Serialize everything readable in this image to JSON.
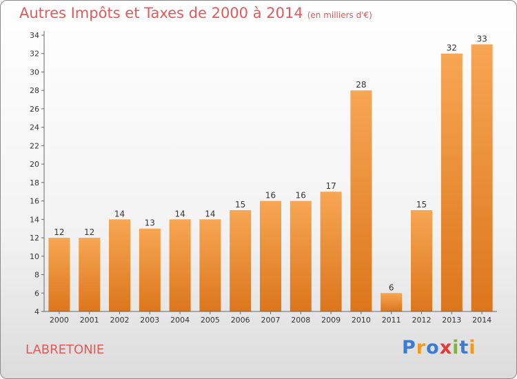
{
  "header": {
    "title": "Autres Impôts et Taxes de 2000 à 2014",
    "unit": "(en milliers d'€)"
  },
  "footer": {
    "commune": "LABRETONIE",
    "brand": "Proxiti"
  },
  "colors": {
    "bar_light": "#f7a654",
    "bar_dark": "#dc761c",
    "title": "#e05a5a"
  },
  "chart_data": {
    "type": "bar",
    "categories": [
      "2000",
      "2001",
      "2002",
      "2003",
      "2004",
      "2005",
      "2006",
      "2007",
      "2008",
      "2009",
      "2010",
      "2011",
      "2012",
      "2013",
      "2014"
    ],
    "values": [
      12,
      12,
      14,
      13,
      14,
      14,
      15,
      16,
      16,
      17,
      28,
      6,
      15,
      32,
      33
    ],
    "data_labels": [
      "12",
      "12",
      "14",
      "13",
      "14",
      "14",
      "15",
      "16",
      "16",
      "17",
      "28",
      "6",
      "15",
      "32",
      "33"
    ],
    "ylim": [
      4,
      34
    ],
    "yticks": [
      "4",
      "6",
      "8",
      "10",
      "12",
      "14",
      "16",
      "18",
      "20",
      "22",
      "24",
      "26",
      "28",
      "30",
      "32",
      "34"
    ],
    "grid": false,
    "legend": "none"
  }
}
